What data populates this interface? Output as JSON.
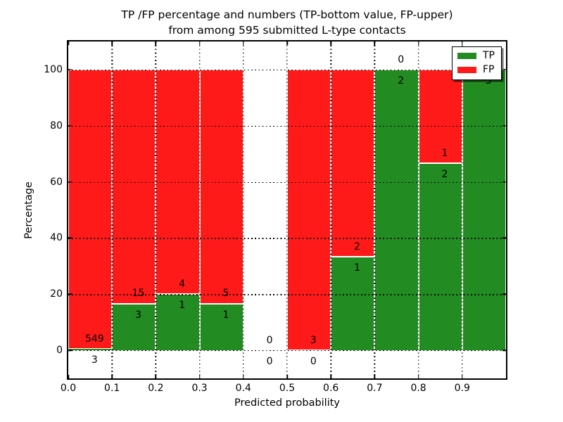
{
  "figure": {
    "title_line1": "TP /FP percentage and numbers (TP-bottom value, FP-upper)",
    "title_line2": "from among 595 submitted L-type contacts",
    "xlabel": "Predicted probability",
    "ylabel": "Percentage"
  },
  "legend": {
    "position": "upper right inside axes",
    "items": [
      {
        "label": "TP",
        "color": "#228c22"
      },
      {
        "label": "FP",
        "color": "#ff1a1a"
      }
    ]
  },
  "colors": {
    "tp_green": "#228c22",
    "fp_red": "#ff1a1a",
    "bar_edge": "#ffffff",
    "grid": "#000000",
    "spine": "#000000",
    "background": "#ffffff"
  },
  "chart_data": {
    "type": "bar",
    "subtype": "stacked percentage histogram with count annotations",
    "title": "TP /FP percentage and numbers (TP-bottom value, FP-upper) from among 595 submitted L-type contacts",
    "xlabel": "Predicted probability",
    "ylabel": "Percentage",
    "total_contacts": 595,
    "xlim": [
      0.0,
      1.0
    ],
    "ylim": [
      -10,
      110
    ],
    "grid": true,
    "grid_style": "dotted black, drawn above bars",
    "legend_position": "upper right",
    "ytick_values": [
      0,
      20,
      40,
      60,
      80,
      100
    ],
    "ytick_labels": [
      "0",
      "20",
      "40",
      "60",
      "80",
      "100"
    ],
    "xtick_values": [
      0.0,
      0.1,
      0.2,
      0.3,
      0.4,
      0.5,
      0.6,
      0.7,
      0.8,
      0.9
    ],
    "xtick_labels": [
      "0.0",
      "0.1",
      "0.2",
      "0.3",
      "0.4",
      "0.5",
      "0.6",
      "0.7",
      "0.8",
      "0.9"
    ],
    "series": [
      {
        "name": "TP",
        "color": "#228c22",
        "counts": [
          3,
          3,
          1,
          1,
          0,
          0,
          1,
          2,
          2,
          3
        ]
      },
      {
        "name": "FP",
        "color": "#ff1a1a",
        "counts": [
          549,
          15,
          4,
          5,
          0,
          3,
          2,
          0,
          1,
          0
        ]
      }
    ],
    "bins": [
      {
        "range": [
          0.0,
          0.1
        ],
        "tp": 3,
        "fp": 549,
        "tp_pct": 0.54,
        "fp_pct": 99.46
      },
      {
        "range": [
          0.1,
          0.2
        ],
        "tp": 3,
        "fp": 15,
        "tp_pct": 16.67,
        "fp_pct": 83.33
      },
      {
        "range": [
          0.2,
          0.3
        ],
        "tp": 1,
        "fp": 4,
        "tp_pct": 20.0,
        "fp_pct": 80.0
      },
      {
        "range": [
          0.3,
          0.4
        ],
        "tp": 1,
        "fp": 5,
        "tp_pct": 16.67,
        "fp_pct": 83.33
      },
      {
        "range": [
          0.4,
          0.5
        ],
        "tp": 0,
        "fp": 0,
        "tp_pct": 0.0,
        "fp_pct": 0.0
      },
      {
        "range": [
          0.5,
          0.6
        ],
        "tp": 0,
        "fp": 3,
        "tp_pct": 0.0,
        "fp_pct": 100.0
      },
      {
        "range": [
          0.6,
          0.7
        ],
        "tp": 1,
        "fp": 2,
        "tp_pct": 33.33,
        "fp_pct": 66.67
      },
      {
        "range": [
          0.7,
          0.8
        ],
        "tp": 2,
        "fp": 0,
        "tp_pct": 100.0,
        "fp_pct": 0.0
      },
      {
        "range": [
          0.8,
          0.9
        ],
        "tp": 2,
        "fp": 1,
        "tp_pct": 66.67,
        "fp_pct": 33.33
      },
      {
        "range": [
          0.9,
          1.0
        ],
        "tp": 3,
        "fp": 0,
        "tp_pct": 100.0,
        "fp_pct": 0.0
      }
    ]
  }
}
